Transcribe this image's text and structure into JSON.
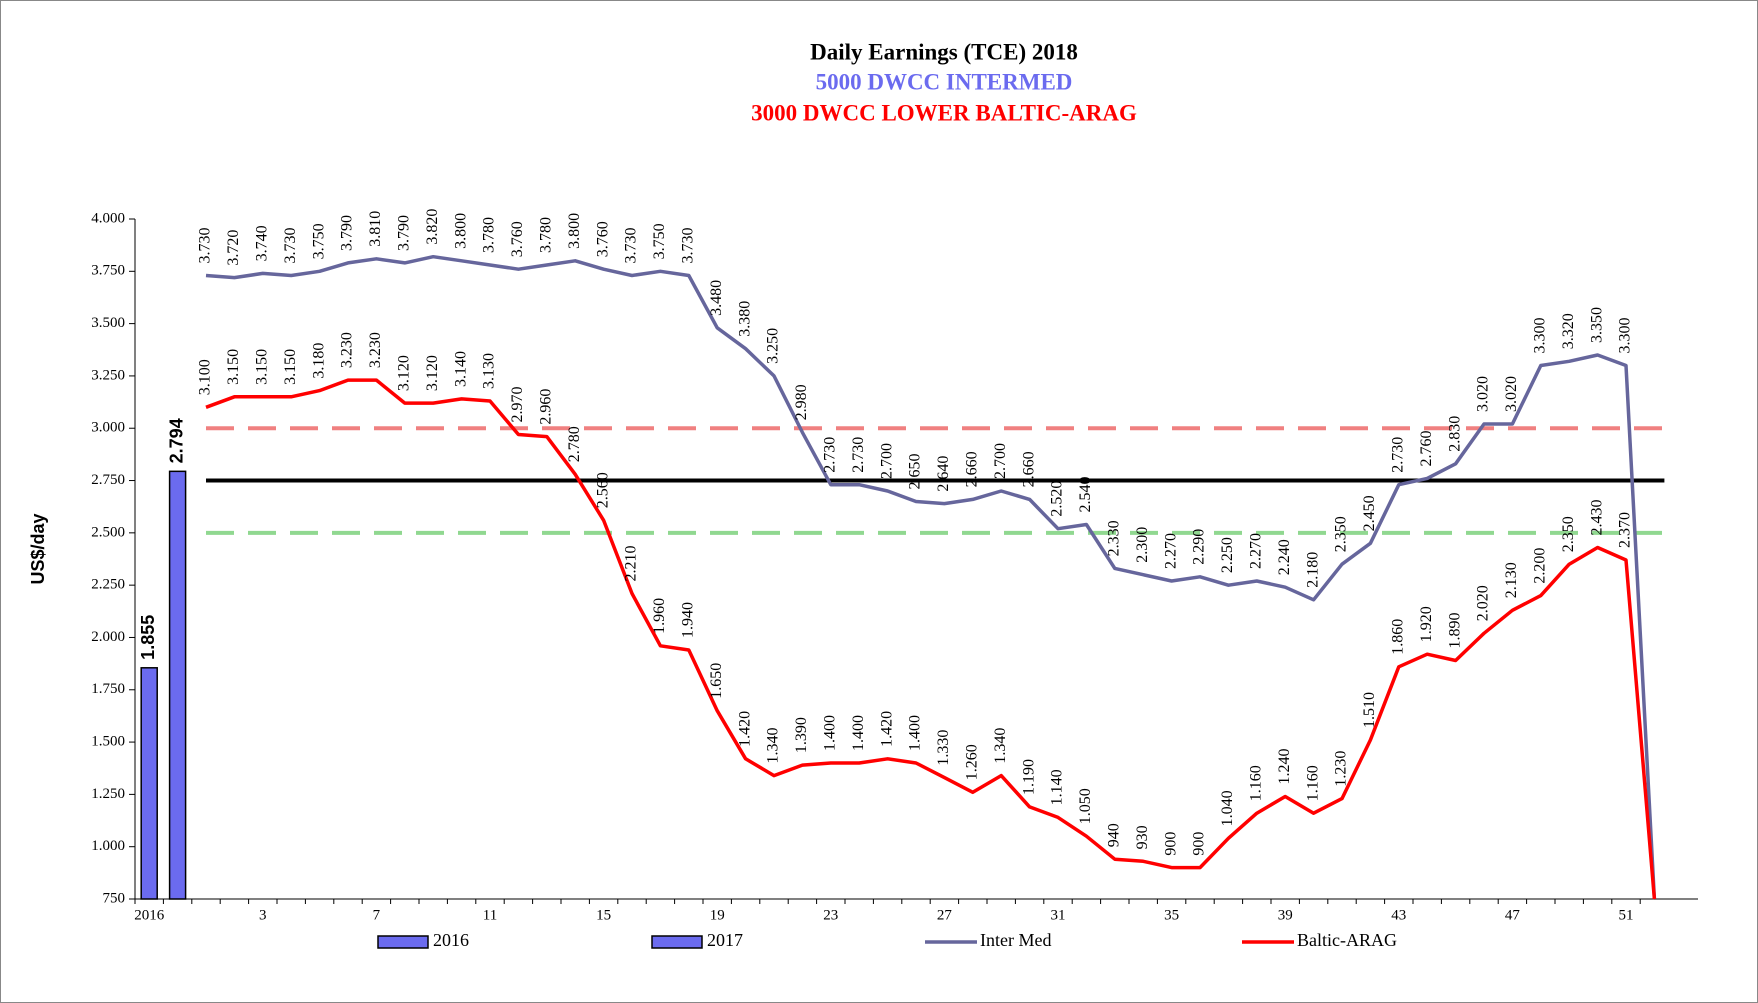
{
  "chart_data": {
    "type": "bar-line",
    "title": "Daily Earnings (TCE) 2018",
    "subtitles": [
      {
        "text": "5000 DWCC INTERMED",
        "color": "#6b6bef"
      },
      {
        "text": "3000 DWCC LOWER BALTIC-ARAG",
        "color": "#ff0000"
      }
    ],
    "y_label": "US$/day",
    "categories": [
      "2016",
      null,
      null,
      null,
      "3",
      null,
      null,
      null,
      "7",
      null,
      null,
      null,
      "11",
      null,
      null,
      null,
      "15",
      null,
      null,
      null,
      "19",
      null,
      null,
      null,
      "23",
      null,
      null,
      null,
      "27",
      null,
      null,
      null,
      "31",
      null,
      null,
      null,
      "35",
      null,
      null,
      null,
      "39",
      null,
      null,
      null,
      "43",
      null,
      null,
      null,
      "47",
      null,
      null,
      null,
      "51",
      null
    ],
    "ylim": [
      750,
      4000
    ],
    "yticks": [
      {
        "value": 750,
        "label": "750"
      },
      {
        "value": 1000,
        "label": "1.000"
      },
      {
        "value": 1250,
        "label": "1.250"
      },
      {
        "value": 1500,
        "label": "1.500"
      },
      {
        "value": 1750,
        "label": "1.750"
      },
      {
        "value": 2000,
        "label": "2.000"
      },
      {
        "value": 2250,
        "label": "2.250"
      },
      {
        "value": 2500,
        "label": "2.500"
      },
      {
        "value": 2750,
        "label": "2.750"
      },
      {
        "value": 3000,
        "label": "3.000"
      },
      {
        "value": 3250,
        "label": "3.250"
      },
      {
        "value": 3500,
        "label": "3.500"
      },
      {
        "value": 3750,
        "label": "3.750"
      },
      {
        "value": 4000,
        "label": "4.000"
      }
    ],
    "reference_lines": [
      {
        "value": 3000,
        "color": "#f08080",
        "style": "dashed"
      },
      {
        "value": 2750,
        "color": "#000000",
        "style": "solid"
      },
      {
        "value": 2500,
        "color": "#90d890",
        "style": "dashed"
      }
    ],
    "series": [
      {
        "name": "2016",
        "kind": "bar",
        "color": "#6b6bef",
        "values": [
          1855,
          null,
          null,
          null,
          null,
          null,
          null,
          null,
          null,
          null,
          null,
          null,
          null,
          null,
          null,
          null,
          null,
          null,
          null,
          null,
          null,
          null,
          null,
          null,
          null,
          null,
          null,
          null,
          null,
          null,
          null,
          null,
          null,
          null,
          null,
          null,
          null,
          null,
          null,
          null,
          null,
          null,
          null,
          null,
          null,
          null,
          null,
          null,
          null,
          null,
          null,
          null,
          null,
          null
        ],
        "value_labels": [
          "1.855",
          null,
          null,
          null,
          null,
          null,
          null,
          null,
          null,
          null,
          null,
          null,
          null,
          null,
          null,
          null,
          null,
          null,
          null,
          null,
          null,
          null,
          null,
          null,
          null,
          null,
          null,
          null,
          null,
          null,
          null,
          null,
          null,
          null,
          null,
          null,
          null,
          null,
          null,
          null,
          null,
          null,
          null,
          null,
          null,
          null,
          null,
          null,
          null,
          null,
          null,
          null,
          null,
          null
        ]
      },
      {
        "name": "2017",
        "kind": "bar",
        "color": "#6b6bef",
        "values": [
          null,
          2794,
          null,
          null,
          null,
          null,
          null,
          null,
          null,
          null,
          null,
          null,
          null,
          null,
          null,
          null,
          null,
          null,
          null,
          null,
          null,
          null,
          null,
          null,
          null,
          null,
          null,
          null,
          null,
          null,
          null,
          null,
          null,
          null,
          null,
          null,
          null,
          null,
          null,
          null,
          null,
          null,
          null,
          null,
          null,
          null,
          null,
          null,
          null,
          null,
          null,
          null,
          null,
          null
        ],
        "value_labels": [
          null,
          "2.794",
          null,
          null,
          null,
          null,
          null,
          null,
          null,
          null,
          null,
          null,
          null,
          null,
          null,
          null,
          null,
          null,
          null,
          null,
          null,
          null,
          null,
          null,
          null,
          null,
          null,
          null,
          null,
          null,
          null,
          null,
          null,
          null,
          null,
          null,
          null,
          null,
          null,
          null,
          null,
          null,
          null,
          null,
          null,
          null,
          null,
          null,
          null,
          null,
          null,
          null,
          null,
          null
        ]
      },
      {
        "name": "Inter Med",
        "kind": "line",
        "color": "#66669c",
        "values": [
          null,
          null,
          3730,
          3720,
          3740,
          3730,
          3750,
          3790,
          3810,
          3790,
          3820,
          3800,
          3780,
          3760,
          3780,
          3800,
          3760,
          3730,
          3750,
          3730,
          3480,
          3380,
          3250,
          2980,
          2730,
          2730,
          2700,
          2650,
          2640,
          2660,
          2700,
          2660,
          2520,
          2540,
          2330,
          2300,
          2270,
          2290,
          2250,
          2270,
          2240,
          2180,
          2350,
          2450,
          2730,
          2760,
          2830,
          3020,
          3020,
          3300,
          3320,
          3350,
          3300,
          750
        ],
        "value_labels": [
          null,
          null,
          "3.730",
          "3.720",
          "3.740",
          "3.730",
          "3.750",
          "3.790",
          "3.810",
          "3.790",
          "3.820",
          "3.800",
          "3.780",
          "3.760",
          "3.780",
          "3.800",
          "3.760",
          "3.730",
          "3.750",
          "3.730",
          "3.480",
          "3.380",
          "3.250",
          "2.980",
          "2.730",
          "2.730",
          "2.700",
          "2.650",
          "2.640",
          "2.660",
          "2.700",
          "2.660",
          "2.520",
          "2.540",
          "2.330",
          "2.300",
          "2.270",
          "2.290",
          "2.250",
          "2.270",
          "2.240",
          "2.180",
          "2.350",
          "2.450",
          "2.730",
          "2.760",
          "2.830",
          "3.020",
          "3.020",
          "3.300",
          "3.320",
          "3.350",
          "3.300",
          null
        ]
      },
      {
        "name": "Baltic-ARAG",
        "kind": "line",
        "color": "#ff0000",
        "values": [
          null,
          null,
          3100,
          3150,
          3150,
          3150,
          3180,
          3230,
          3230,
          3120,
          3120,
          3140,
          3130,
          2970,
          2960,
          2780,
          2560,
          2210,
          1960,
          1940,
          1650,
          1420,
          1340,
          1390,
          1400,
          1400,
          1420,
          1400,
          1330,
          1260,
          1340,
          1190,
          1140,
          1050,
          940,
          930,
          900,
          900,
          1040,
          1160,
          1240,
          1160,
          1230,
          1510,
          1860,
          1920,
          1890,
          2020,
          2130,
          2200,
          2350,
          2430,
          2370,
          750
        ],
        "value_labels": [
          null,
          null,
          "3.100",
          "3.150",
          "3.150",
          "3.150",
          "3.180",
          "3.230",
          "3.230",
          "3.120",
          "3.120",
          "3.140",
          "3.130",
          "2.970",
          "2.960",
          "2.780",
          "2.560",
          "2.210",
          "1.960",
          "1.940",
          "1.650",
          "1.420",
          "1.340",
          "1.390",
          "1.400",
          "1.400",
          "1.420",
          "1.400",
          "1.330",
          "1.260",
          "1.340",
          "1.190",
          "1.140",
          "1.050",
          "940",
          "930",
          "900",
          "900",
          "1.040",
          "1.160",
          "1.240",
          "1.160",
          "1.230",
          "1.510",
          "1.860",
          "1.920",
          "1.890",
          "2.020",
          "2.130",
          "2.200",
          "2.350",
          "2.430",
          "2.370",
          null
        ]
      }
    ]
  }
}
